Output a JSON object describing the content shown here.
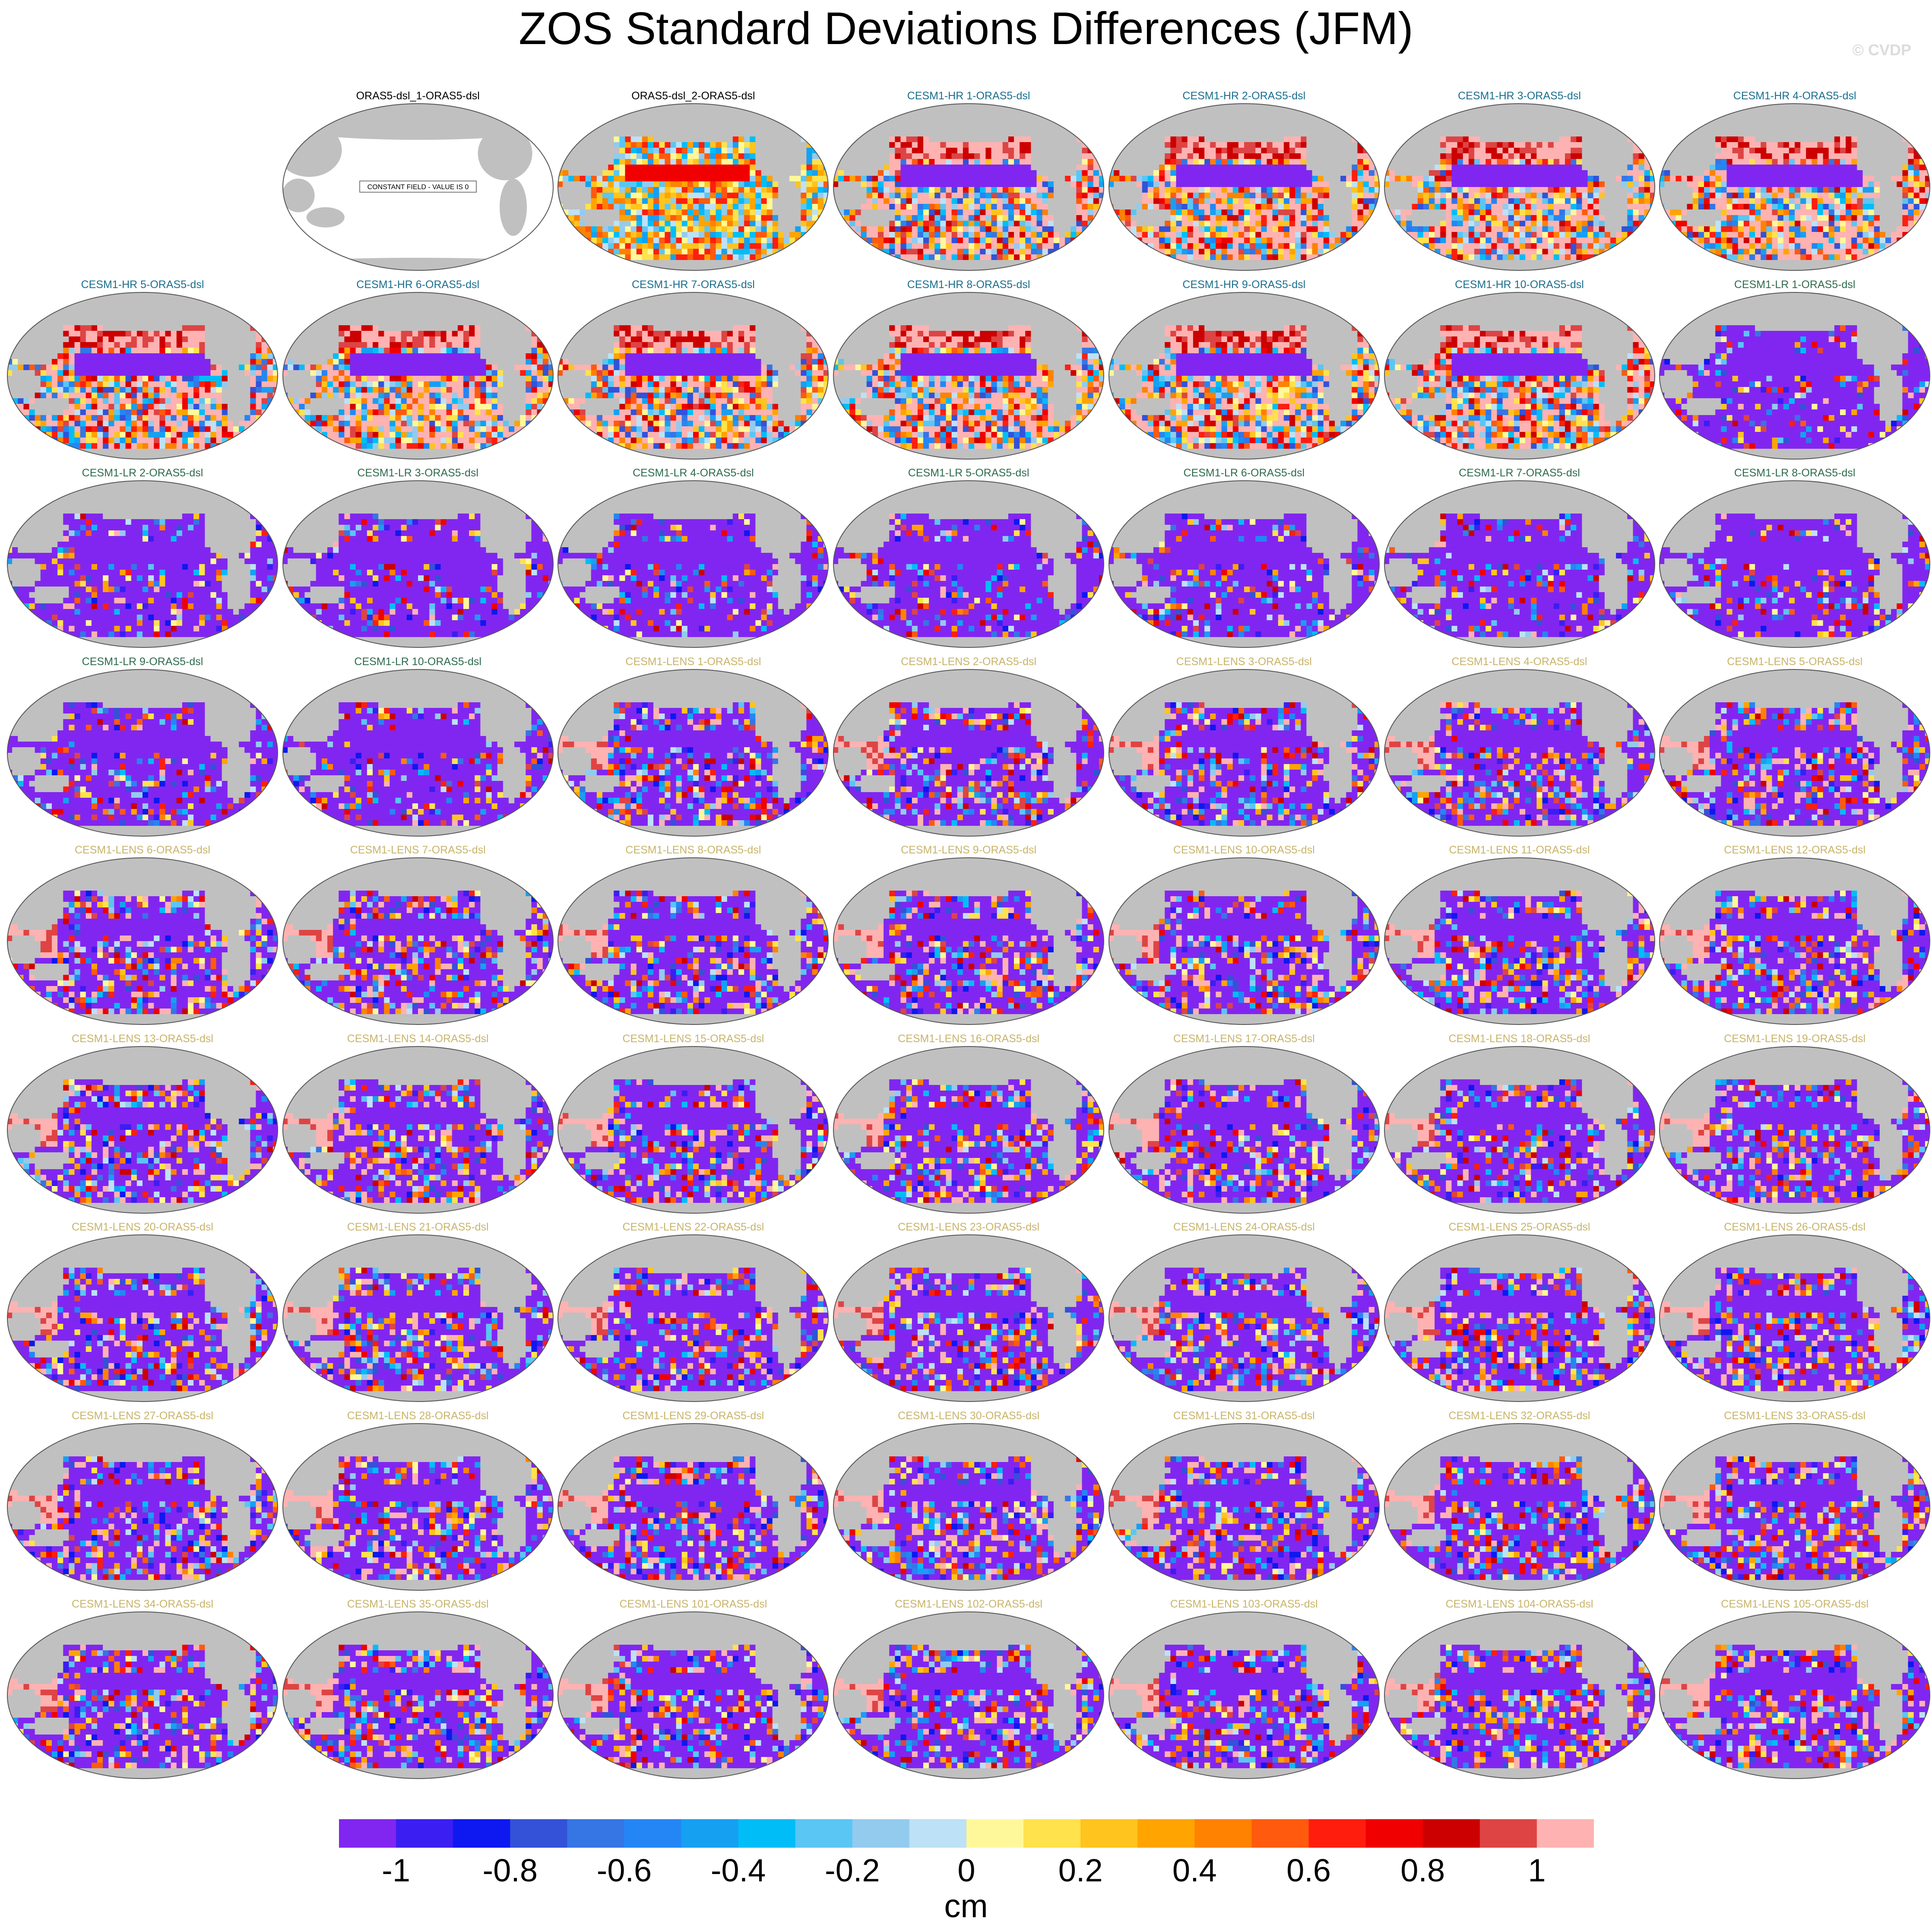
{
  "title": "ZOS Standard Deviations Differences (JFM)",
  "watermark": "© CVDP",
  "colorbar": {
    "colors": [
      "#8126f0",
      "#3b1ef2",
      "#0e18f0",
      "#3352d8",
      "#3675e4",
      "#2486f4",
      "#16a0f2",
      "#00bdf8",
      "#5ac6f4",
      "#93cbee",
      "#bde1f6",
      "#fff89a",
      "#ffe24c",
      "#ffc41e",
      "#ffa400",
      "#ff8200",
      "#ff5a0e",
      "#ff1e0e",
      "#f00000",
      "#cc0000",
      "#de4444",
      "#feb2b2"
    ],
    "labels": [
      "-1",
      "-0.8",
      "-0.6",
      "-0.4",
      "-0.2",
      "0",
      "0.2",
      "0.4",
      "0.6",
      "0.8",
      "1"
    ],
    "units": "cm"
  },
  "chart_data": {
    "type": "heatmap",
    "title": "ZOS Standard Deviations Differences (JFM)",
    "projection": "global map, Pacific-centered",
    "variable": "ZOS standard deviation difference",
    "season": "JFM",
    "units": "cm",
    "color_levels": [
      -1,
      -0.9,
      -0.8,
      -0.7,
      -0.6,
      -0.5,
      -0.4,
      -0.3,
      -0.2,
      -0.1,
      0,
      0.1,
      0.2,
      0.3,
      0.4,
      0.5,
      0.6,
      0.7,
      0.8,
      0.9,
      1
    ],
    "colorbar_labels": [
      "-1",
      "-0.8",
      "-0.6",
      "-0.4",
      "-0.2",
      "0",
      "0.2",
      "0.4",
      "0.6",
      "0.8",
      "1"
    ],
    "land_color": "#c0c0c0",
    "group_title_colors": {
      "obs": "#000000",
      "CESM1-HR": "#1a6e8e",
      "CESM1-LR": "#2e6b4e",
      "CESM1-LENS": "#c8b46a"
    },
    "panels": [
      {
        "title": "ORAS5-dsl_1-ORAS5-dsl",
        "group": "obs",
        "note": "CONSTANT FIELD - VALUE IS 0"
      },
      {
        "title": "ORAS5-dsl_2-ORAS5-dsl",
        "group": "obs"
      },
      {
        "title": "CESM1-HR 1-ORAS5-dsl",
        "group": "CESM1-HR"
      },
      {
        "title": "CESM1-HR 2-ORAS5-dsl",
        "group": "CESM1-HR"
      },
      {
        "title": "CESM1-HR 3-ORAS5-dsl",
        "group": "CESM1-HR"
      },
      {
        "title": "CESM1-HR 4-ORAS5-dsl",
        "group": "CESM1-HR"
      },
      {
        "title": "CESM1-HR 5-ORAS5-dsl",
        "group": "CESM1-HR"
      },
      {
        "title": "CESM1-HR 6-ORAS5-dsl",
        "group": "CESM1-HR"
      },
      {
        "title": "CESM1-HR 7-ORAS5-dsl",
        "group": "CESM1-HR"
      },
      {
        "title": "CESM1-HR 8-ORAS5-dsl",
        "group": "CESM1-HR"
      },
      {
        "title": "CESM1-HR 9-ORAS5-dsl",
        "group": "CESM1-HR"
      },
      {
        "title": "CESM1-HR 10-ORAS5-dsl",
        "group": "CESM1-HR"
      },
      {
        "title": "CESM1-LR 1-ORAS5-dsl",
        "group": "CESM1-LR"
      },
      {
        "title": "CESM1-LR 2-ORAS5-dsl",
        "group": "CESM1-LR"
      },
      {
        "title": "CESM1-LR 3-ORAS5-dsl",
        "group": "CESM1-LR"
      },
      {
        "title": "CESM1-LR 4-ORAS5-dsl",
        "group": "CESM1-LR"
      },
      {
        "title": "CESM1-LR 5-ORAS5-dsl",
        "group": "CESM1-LR"
      },
      {
        "title": "CESM1-LR 6-ORAS5-dsl",
        "group": "CESM1-LR"
      },
      {
        "title": "CESM1-LR 7-ORAS5-dsl",
        "group": "CESM1-LR"
      },
      {
        "title": "CESM1-LR 8-ORAS5-dsl",
        "group": "CESM1-LR"
      },
      {
        "title": "CESM1-LR 9-ORAS5-dsl",
        "group": "CESM1-LR"
      },
      {
        "title": "CESM1-LR 10-ORAS5-dsl",
        "group": "CESM1-LR"
      },
      {
        "title": "CESM1-LENS 1-ORAS5-dsl",
        "group": "CESM1-LENS"
      },
      {
        "title": "CESM1-LENS 2-ORAS5-dsl",
        "group": "CESM1-LENS"
      },
      {
        "title": "CESM1-LENS 3-ORAS5-dsl",
        "group": "CESM1-LENS"
      },
      {
        "title": "CESM1-LENS 4-ORAS5-dsl",
        "group": "CESM1-LENS"
      },
      {
        "title": "CESM1-LENS 5-ORAS5-dsl",
        "group": "CESM1-LENS"
      },
      {
        "title": "CESM1-LENS 6-ORAS5-dsl",
        "group": "CESM1-LENS"
      },
      {
        "title": "CESM1-LENS 7-ORAS5-dsl",
        "group": "CESM1-LENS"
      },
      {
        "title": "CESM1-LENS 8-ORAS5-dsl",
        "group": "CESM1-LENS"
      },
      {
        "title": "CESM1-LENS 9-ORAS5-dsl",
        "group": "CESM1-LENS"
      },
      {
        "title": "CESM1-LENS 10-ORAS5-dsl",
        "group": "CESM1-LENS"
      },
      {
        "title": "CESM1-LENS 11-ORAS5-dsl",
        "group": "CESM1-LENS"
      },
      {
        "title": "CESM1-LENS 12-ORAS5-dsl",
        "group": "CESM1-LENS"
      },
      {
        "title": "CESM1-LENS 13-ORAS5-dsl",
        "group": "CESM1-LENS"
      },
      {
        "title": "CESM1-LENS 14-ORAS5-dsl",
        "group": "CESM1-LENS"
      },
      {
        "title": "CESM1-LENS 15-ORAS5-dsl",
        "group": "CESM1-LENS"
      },
      {
        "title": "CESM1-LENS 16-ORAS5-dsl",
        "group": "CESM1-LENS"
      },
      {
        "title": "CESM1-LENS 17-ORAS5-dsl",
        "group": "CESM1-LENS"
      },
      {
        "title": "CESM1-LENS 18-ORAS5-dsl",
        "group": "CESM1-LENS"
      },
      {
        "title": "CESM1-LENS 19-ORAS5-dsl",
        "group": "CESM1-LENS"
      },
      {
        "title": "CESM1-LENS 20-ORAS5-dsl",
        "group": "CESM1-LENS"
      },
      {
        "title": "CESM1-LENS 21-ORAS5-dsl",
        "group": "CESM1-LENS"
      },
      {
        "title": "CESM1-LENS 22-ORAS5-dsl",
        "group": "CESM1-LENS"
      },
      {
        "title": "CESM1-LENS 23-ORAS5-dsl",
        "group": "CESM1-LENS"
      },
      {
        "title": "CESM1-LENS 24-ORAS5-dsl",
        "group": "CESM1-LENS"
      },
      {
        "title": "CESM1-LENS 25-ORAS5-dsl",
        "group": "CESM1-LENS"
      },
      {
        "title": "CESM1-LENS 26-ORAS5-dsl",
        "group": "CESM1-LENS"
      },
      {
        "title": "CESM1-LENS 27-ORAS5-dsl",
        "group": "CESM1-LENS"
      },
      {
        "title": "CESM1-LENS 28-ORAS5-dsl",
        "group": "CESM1-LENS"
      },
      {
        "title": "CESM1-LENS 29-ORAS5-dsl",
        "group": "CESM1-LENS"
      },
      {
        "title": "CESM1-LENS 30-ORAS5-dsl",
        "group": "CESM1-LENS"
      },
      {
        "title": "CESM1-LENS 31-ORAS5-dsl",
        "group": "CESM1-LENS"
      },
      {
        "title": "CESM1-LENS 32-ORAS5-dsl",
        "group": "CESM1-LENS"
      },
      {
        "title": "CESM1-LENS 33-ORAS5-dsl",
        "group": "CESM1-LENS"
      },
      {
        "title": "CESM1-LENS 34-ORAS5-dsl",
        "group": "CESM1-LENS"
      },
      {
        "title": "CESM1-LENS 35-ORAS5-dsl",
        "group": "CESM1-LENS"
      },
      {
        "title": "CESM1-LENS 101-ORAS5-dsl",
        "group": "CESM1-LENS"
      },
      {
        "title": "CESM1-LENS 102-ORAS5-dsl",
        "group": "CESM1-LENS"
      },
      {
        "title": "CESM1-LENS 103-ORAS5-dsl",
        "group": "CESM1-LENS"
      },
      {
        "title": "CESM1-LENS 104-ORAS5-dsl",
        "group": "CESM1-LENS"
      },
      {
        "title": "CESM1-LENS 105-ORAS5-dsl",
        "group": "CESM1-LENS"
      }
    ]
  }
}
